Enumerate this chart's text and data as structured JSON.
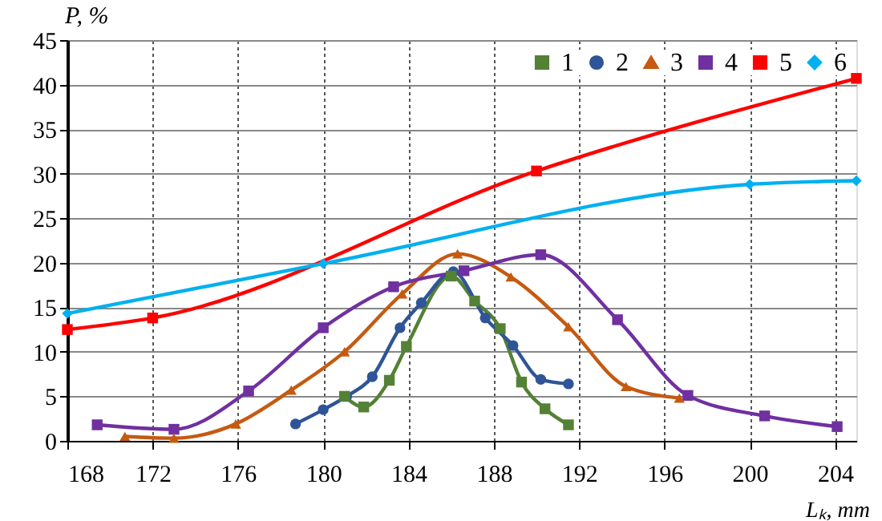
{
  "chart_data": {
    "type": "line",
    "xlabel": "Lₖ, mm",
    "ylabel": "P, %",
    "xlim": [
      168,
      205
    ],
    "xticks": [
      168,
      172,
      176,
      180,
      184,
      188,
      192,
      196,
      200,
      204
    ],
    "ylim": [
      0,
      45
    ],
    "yticks": [
      0,
      5,
      10,
      15,
      20,
      25,
      30,
      35,
      40,
      45
    ],
    "grid": true,
    "legend": "top right",
    "line_style": "solid",
    "series": [
      {
        "name": "1",
        "color": "#538135",
        "marker": "square",
        "x": [
          181,
          181.9,
          183.1,
          183.9,
          186,
          187.1,
          188.3,
          189.3,
          190.4,
          191.5
        ],
        "values": [
          5,
          3.8,
          6.8,
          10.6,
          18.5,
          15.7,
          12.6,
          6.6,
          3.6,
          1.8
        ]
      },
      {
        "name": "2",
        "color": "#2f5597",
        "marker": "circle",
        "x": [
          178.7,
          180,
          181.1,
          182.3,
          183.6,
          184.6,
          186.1,
          187.6,
          188.9,
          190.2,
          191.5
        ],
        "values": [
          1.9,
          3.5,
          5,
          7.2,
          12.7,
          15.5,
          19,
          13.8,
          10.7,
          6.9,
          6.4
        ]
      },
      {
        "name": "3",
        "color": "#c55a11",
        "marker": "triangle",
        "x": [
          170.7,
          173,
          175.9,
          178.5,
          181,
          183.7,
          186.3,
          188.8,
          191.5,
          194.2,
          196.7
        ],
        "values": [
          0.5,
          0.3,
          1.9,
          5.7,
          10,
          16.5,
          21,
          18.4,
          12.8,
          6.1,
          4.8
        ]
      },
      {
        "name": "4",
        "color": "#7030a0",
        "marker": "square",
        "x": [
          169.4,
          173,
          176.5,
          180,
          183.3,
          186.6,
          190.2,
          193.8,
          197.1,
          200.7,
          204.1
        ],
        "values": [
          1.8,
          1.3,
          5.6,
          12.7,
          17.3,
          19.1,
          20.9,
          13.6,
          5.1,
          2.8,
          1.6
        ]
      },
      {
        "name": "5",
        "color": "#ff0000",
        "marker": "square",
        "x": [
          168,
          172,
          190,
          205
        ],
        "values": [
          12.5,
          13.8,
          30.3,
          40.7
        ]
      },
      {
        "name": "6",
        "color": "#00b0f0",
        "marker": "diamond",
        "x": [
          168,
          180,
          200,
          205
        ],
        "values": [
          14.3,
          19.9,
          28.8,
          29.2
        ]
      }
    ]
  }
}
